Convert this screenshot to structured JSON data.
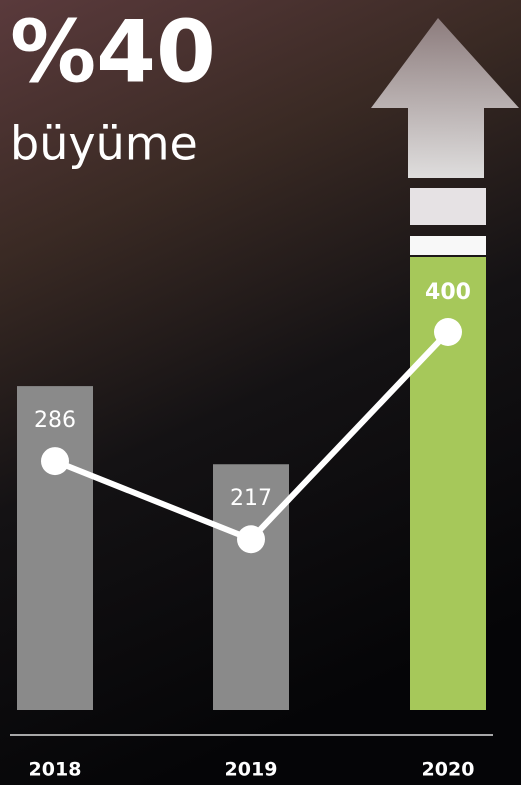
{
  "chart_data": {
    "type": "bar",
    "title": "%40",
    "subtitle": "büyüme",
    "categories": [
      "2018",
      "2019",
      "2020"
    ],
    "values": [
      286,
      217,
      400
    ],
    "colors": [
      "#8a8a8a",
      "#8a8a8a",
      "#a6c85a"
    ],
    "line_color": "#ffffff",
    "ylim": [
      0,
      400
    ]
  }
}
